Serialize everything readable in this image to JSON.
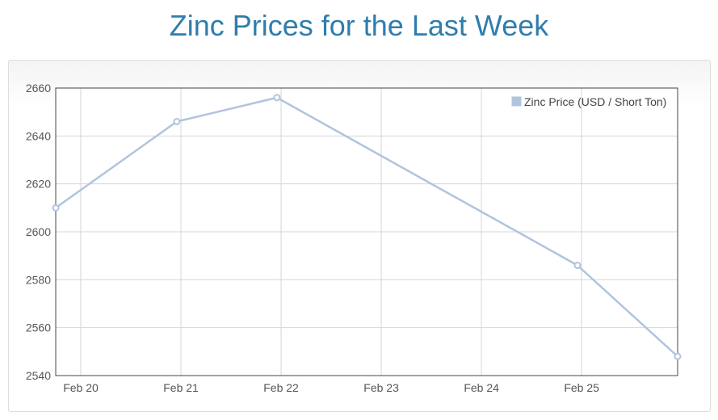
{
  "page": {
    "title": "Zinc Prices for the Last Week"
  },
  "colors": {
    "title": "#2f7dad",
    "series": "#b0c4de",
    "grid": "#d6d6d6",
    "axis": "#555555"
  },
  "chart_data": {
    "type": "line",
    "title": "",
    "xlabel": "",
    "ylabel": "",
    "x_ticks": [
      "Feb 20",
      "Feb 21",
      "Feb 22",
      "Feb 23",
      "Feb 24",
      "Feb 25"
    ],
    "y_ticks": [
      "2540",
      "2560",
      "2580",
      "2600",
      "2620",
      "2640",
      "2660"
    ],
    "ylim": [
      2540,
      2660
    ],
    "xlim": [
      "2015-02-19 18:00",
      "2015-02-25 23:00"
    ],
    "grid": true,
    "legend_position": "top-right",
    "series": [
      {
        "name": "Zinc Price (USD / Short Ton)",
        "points": [
          {
            "x": "2015-02-19 18:00",
            "y": 2610
          },
          {
            "x": "2015-02-20 23:00",
            "y": 2646
          },
          {
            "x": "2015-02-21 23:00",
            "y": 2656
          },
          {
            "x": "2015-02-24 23:00",
            "y": 2586
          },
          {
            "x": "2015-02-25 23:00",
            "y": 2548
          }
        ]
      }
    ]
  }
}
